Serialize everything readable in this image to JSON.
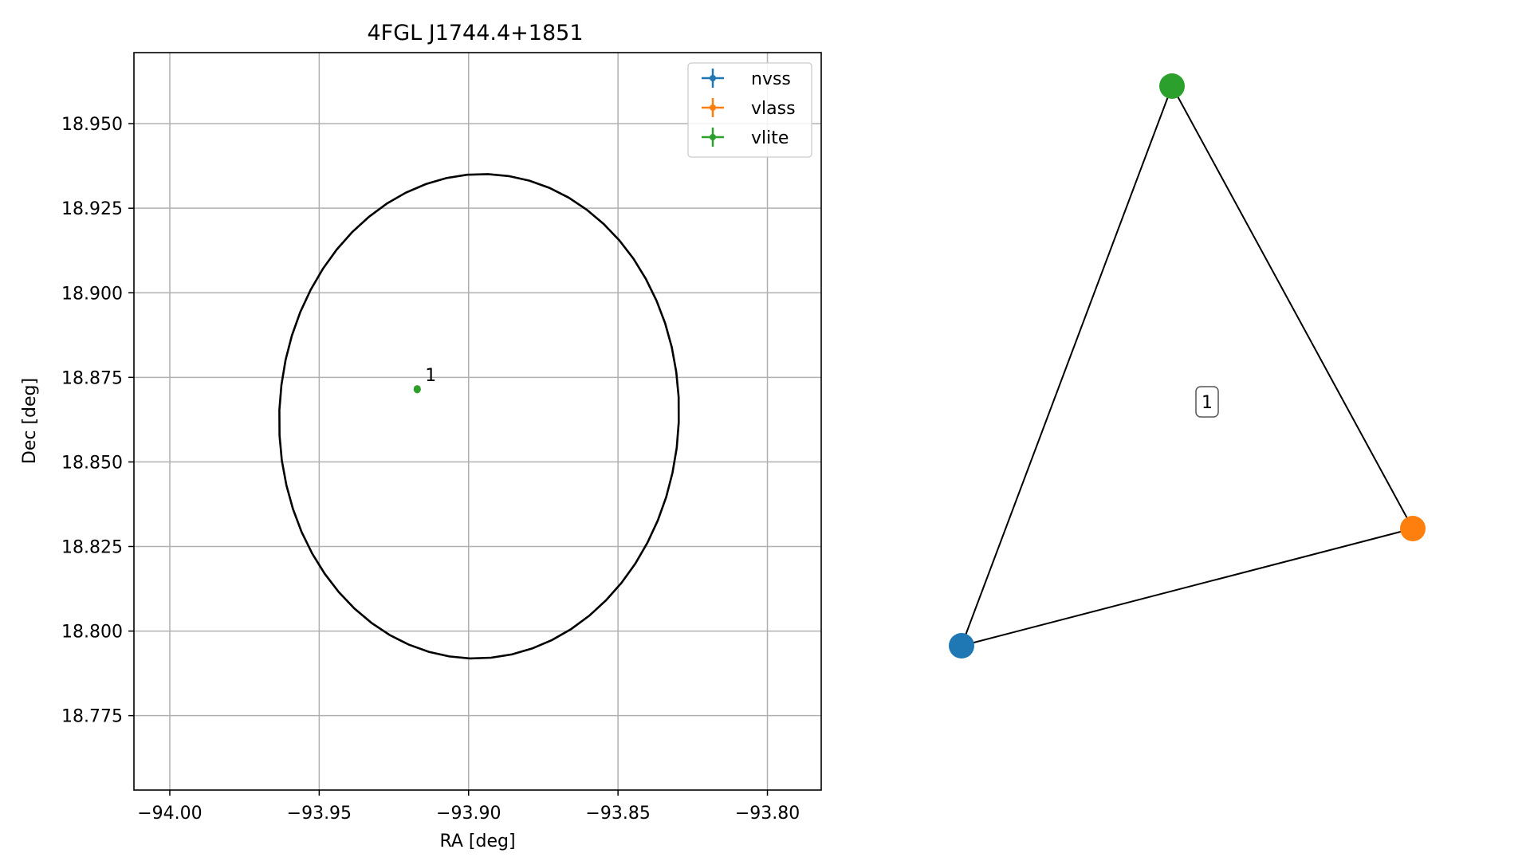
{
  "chart_data": [
    {
      "type": "scatter",
      "title": "4FGL J1744.4+1851",
      "xlabel": "RA [deg]",
      "ylabel": "Dec [deg]",
      "xlim": [
        -94.012,
        -93.782
      ],
      "ylim": [
        18.753,
        18.971
      ],
      "xticks": [
        -94.0,
        -93.95,
        -93.9,
        -93.85,
        -93.8
      ],
      "xtick_labels": [
        "−94.00",
        "−93.95",
        "−93.90",
        "−93.85",
        "−93.80"
      ],
      "yticks": [
        18.775,
        18.8,
        18.825,
        18.85,
        18.875,
        18.9,
        18.925,
        18.95
      ],
      "ytick_labels": [
        "18.775",
        "18.800",
        "18.825",
        "18.850",
        "18.875",
        "18.900",
        "18.925",
        "18.950"
      ],
      "grid": true,
      "legend_position": "top-right",
      "series": [
        {
          "name": "nvss",
          "color": "#1f77b4",
          "points": [
            {
              "x": -93.9172,
              "y": 18.8715
            }
          ]
        },
        {
          "name": "vlass",
          "color": "#ff7f0e",
          "points": [
            {
              "x": -93.9172,
              "y": 18.8715
            }
          ]
        },
        {
          "name": "vlite",
          "color": "#2ca02c",
          "points": [
            {
              "x": -93.9172,
              "y": 18.8715
            }
          ]
        }
      ],
      "ellipse": {
        "center_ra": -93.8965,
        "center_dec": 18.8635,
        "semi_ra": 0.0668,
        "semi_dec": 0.0717,
        "angle_deg": -8,
        "color": "#000000"
      },
      "annotations": [
        {
          "text": "1",
          "x": -93.9172,
          "y": 18.8715
        }
      ]
    },
    {
      "type": "network",
      "nodes": [
        {
          "name": "nvss",
          "color": "#1f77b4"
        },
        {
          "name": "vlass",
          "color": "#ff7f0e"
        },
        {
          "name": "vlite",
          "color": "#2ca02c"
        }
      ],
      "edges": [
        [
          "nvss",
          "vlite"
        ],
        [
          "vlite",
          "vlass"
        ],
        [
          "vlass",
          "nvss"
        ]
      ],
      "group_label": "1"
    }
  ]
}
